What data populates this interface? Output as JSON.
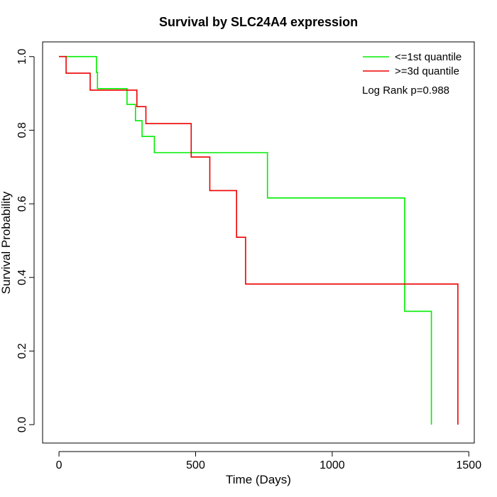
{
  "chart_data": {
    "type": "line",
    "step": true,
    "title": "Survival by SLC24A4 expression",
    "xlabel": "Time (Days)",
    "ylabel": "Survival Probability",
    "xlim": [
      -60,
      1520
    ],
    "ylim": [
      -0.05,
      1.04
    ],
    "xticks": [
      0,
      500,
      1000,
      1500
    ],
    "yticks": [
      0.0,
      0.2,
      0.4,
      0.6,
      0.8,
      1.0
    ],
    "xtick_labels": [
      "0",
      "500",
      "1000",
      "1500"
    ],
    "ytick_labels": [
      "0.0",
      "0.2",
      "0.4",
      "0.6",
      "0.8",
      "1.0"
    ],
    "legend_position": "top-right",
    "grid": false,
    "annotation": "Log Rank p=0.988",
    "series": [
      {
        "name": "<=1st quantile",
        "color": "#00ee00",
        "x": [
          0,
          137,
          141,
          249,
          280,
          304,
          349,
          763,
          1265,
          1363
        ],
        "y": [
          1.0,
          0.957,
          0.913,
          0.87,
          0.826,
          0.783,
          0.739,
          0.616,
          0.308,
          0.0
        ]
      },
      {
        "name": ">=3d quantile",
        "color": "#ee0000",
        "x": [
          0,
          26,
          114,
          285,
          318,
          484,
          552,
          650,
          683,
          1460
        ],
        "y": [
          1.0,
          0.955,
          0.909,
          0.864,
          0.818,
          0.727,
          0.636,
          0.509,
          0.382,
          0.0
        ]
      }
    ]
  }
}
